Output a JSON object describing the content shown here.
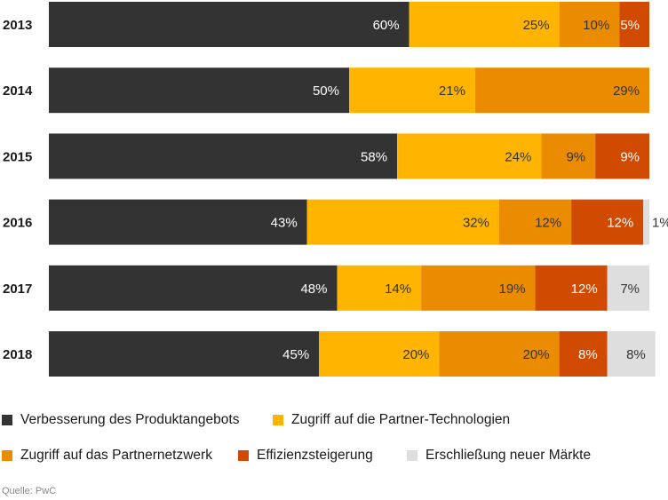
{
  "chart_data": {
    "type": "bar",
    "orientation": "horizontal",
    "stacked": true,
    "categories": [
      "2013",
      "2014",
      "2015",
      "2016",
      "2017",
      "2018"
    ],
    "series": [
      {
        "name": "Verbesserung des Produktangebots",
        "color": "#333333",
        "values": [
          60,
          50,
          58,
          43,
          48,
          45
        ],
        "labels": [
          "60%",
          "50%",
          "58%",
          "43%",
          "48%",
          "45%"
        ]
      },
      {
        "name": "Zugriff auf die Partner-Technologien",
        "color": "#ffb500",
        "values": [
          25,
          21,
          24,
          32,
          14,
          20
        ],
        "labels": [
          "25%",
          "21%",
          "24%",
          "32%",
          "14%",
          "20%"
        ]
      },
      {
        "name": "Zugriff auf das Partnernetzwerk",
        "color": "#eb8c00",
        "values": [
          10,
          29,
          9,
          12,
          19,
          20
        ],
        "labels": [
          "10%",
          "29%",
          "9%",
          "12%",
          "19%",
          "20%"
        ]
      },
      {
        "name": "Effizienzsteigerung",
        "color": "#d04a02",
        "values": [
          5,
          0,
          9,
          12,
          12,
          8
        ],
        "labels": [
          "5%",
          "",
          "9%",
          "12%",
          "12%",
          "8%"
        ]
      },
      {
        "name": "Erschließung neuer Märkte",
        "color": "#dedede",
        "values": [
          0,
          0,
          0,
          1,
          7,
          8
        ],
        "labels": [
          "",
          "",
          "",
          "1%",
          "7%",
          "8%"
        ]
      }
    ],
    "xlim": [
      0,
      100
    ],
    "grid": false,
    "legend": "bottom"
  },
  "source": "Quelle: PwC"
}
